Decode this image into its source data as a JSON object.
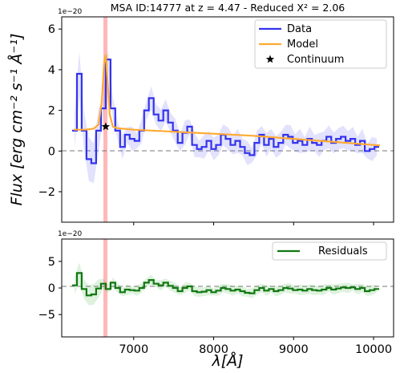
{
  "chart_data": [
    {
      "type": "line",
      "title": "MSA ID:14777 at z = 4.47 - Reduced X² = 2.06",
      "offset_label": "1e−20",
      "ylabel": "Flux [erg cm⁻² s⁻¹ Å⁻¹]",
      "xlim": [
        6100,
        10250
      ],
      "ylim": [
        -3.5,
        6.6
      ],
      "yticks": [
        -2,
        0,
        2,
        4,
        6
      ],
      "yticklabels": [
        "−2",
        "0",
        "2",
        "4",
        "6"
      ],
      "legend_position": "top-right",
      "emission_line_x": 6650,
      "zero_line": 0,
      "series": [
        {
          "name": "Data",
          "color": "#3333ee",
          "style": "step",
          "x": [
            6260,
            6320,
            6380,
            6440,
            6500,
            6560,
            6620,
            6680,
            6740,
            6800,
            6860,
            6920,
            6980,
            7040,
            7100,
            7160,
            7220,
            7280,
            7340,
            7400,
            7460,
            7520,
            7580,
            7640,
            7700,
            7760,
            7820,
            7880,
            7940,
            8000,
            8060,
            8120,
            8180,
            8240,
            8300,
            8360,
            8420,
            8480,
            8540,
            8600,
            8660,
            8720,
            8780,
            8840,
            8900,
            8960,
            9020,
            9080,
            9140,
            9200,
            9260,
            9320,
            9380,
            9440,
            9500,
            9560,
            9620,
            9680,
            9740,
            9800,
            9860,
            9920,
            9980,
            10040
          ],
          "y": [
            1.0,
            3.8,
            1.0,
            -0.4,
            -0.6,
            1.0,
            2.1,
            4.5,
            2.1,
            1.0,
            0.2,
            0.8,
            0.6,
            0.5,
            1.0,
            2.0,
            2.6,
            1.8,
            1.5,
            2.0,
            1.4,
            1.0,
            0.4,
            0.9,
            1.2,
            0.3,
            0.1,
            0.2,
            0.5,
            0.1,
            0.3,
            0.8,
            0.6,
            0.3,
            0.5,
            0.2,
            -0.1,
            -0.2,
            0.4,
            0.8,
            0.3,
            0.6,
            0.2,
            0.4,
            0.8,
            0.7,
            0.4,
            0.5,
            0.3,
            0.6,
            0.4,
            0.3,
            0.5,
            0.7,
            0.4,
            0.6,
            0.7,
            0.5,
            0.6,
            0.3,
            0.5,
            0.0,
            0.1,
            0.2
          ]
        },
        {
          "name": "Model",
          "color": "#ffaa33",
          "style": "line",
          "x": [
            6250,
            6400,
            6500,
            6560,
            6600,
            6630,
            6650,
            6670,
            6700,
            6740,
            6800,
            7000,
            7500,
            8000,
            8500,
            9000,
            9500,
            10000,
            10080
          ],
          "y": [
            1.05,
            1.05,
            1.1,
            1.3,
            2.4,
            4.3,
            4.75,
            3.6,
            1.8,
            1.2,
            1.12,
            1.05,
            0.95,
            0.85,
            0.75,
            0.6,
            0.45,
            0.3,
            0.28
          ]
        },
        {
          "name": "Continuum",
          "color": "#000000",
          "style": "marker",
          "x": [
            6650
          ],
          "y": [
            1.2
          ]
        }
      ]
    },
    {
      "type": "line",
      "offset_label": "1e−20",
      "xlabel": "λ[Å]",
      "xlim": [
        6100,
        10250
      ],
      "ylim": [
        -9.2,
        9.2
      ],
      "xticks": [
        7000,
        8000,
        9000,
        10000
      ],
      "xticklabels": [
        "7000",
        "8000",
        "9000",
        "10000"
      ],
      "yticks": [
        -5,
        0,
        5
      ],
      "yticklabels": [
        "−5",
        "0",
        "5"
      ],
      "legend_position": "top-right",
      "emission_line_x": 6650,
      "zero_line": 0,
      "series": [
        {
          "name": "Residuals",
          "color": "#117711",
          "style": "step",
          "x": [
            6260,
            6320,
            6380,
            6440,
            6500,
            6560,
            6620,
            6680,
            6740,
            6800,
            6860,
            6920,
            6980,
            7040,
            7100,
            7160,
            7220,
            7280,
            7340,
            7400,
            7460,
            7520,
            7580,
            7640,
            7700,
            7760,
            7820,
            7880,
            7940,
            8000,
            8060,
            8120,
            8180,
            8240,
            8300,
            8360,
            8420,
            8480,
            8540,
            8600,
            8660,
            8720,
            8780,
            8840,
            8900,
            8960,
            9020,
            9080,
            9140,
            9200,
            9260,
            9320,
            9380,
            9440,
            9500,
            9560,
            9620,
            9680,
            9740,
            9800,
            9860,
            9920,
            9980,
            10040
          ],
          "y": [
            0.5,
            2.8,
            -0.2,
            -1.4,
            -1.2,
            -0.1,
            0.8,
            -0.2,
            1.0,
            0.0,
            -0.8,
            -0.3,
            -0.4,
            -0.5,
            0.0,
            1.0,
            1.5,
            0.8,
            0.5,
            1.0,
            0.4,
            0.0,
            -0.6,
            0.0,
            0.3,
            -0.6,
            -0.8,
            -0.7,
            -0.4,
            -0.8,
            -0.5,
            0.0,
            -0.2,
            -0.5,
            -0.3,
            -0.6,
            -0.9,
            -1.0,
            -0.4,
            0.0,
            -0.5,
            -0.2,
            -0.6,
            -0.4,
            0.0,
            -0.1,
            -0.4,
            -0.3,
            -0.5,
            -0.2,
            -0.4,
            -0.5,
            -0.3,
            0.0,
            -0.3,
            -0.1,
            0.1,
            0.0,
            0.1,
            -0.2,
            0.0,
            -0.6,
            -0.4,
            -0.2
          ]
        }
      ]
    }
  ]
}
